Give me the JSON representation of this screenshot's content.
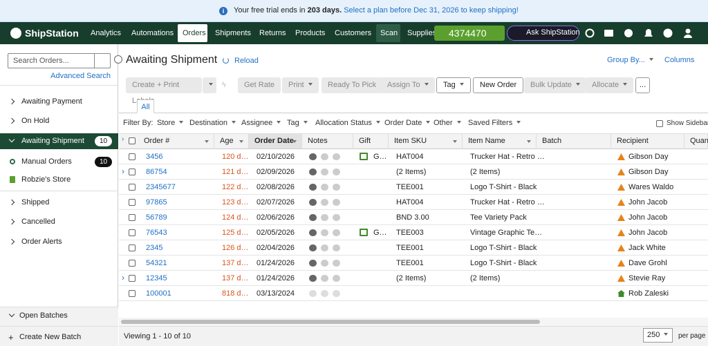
{
  "banner": {
    "text": "Your free trial ends in",
    "days": "203 days.",
    "link": "Select a plan before Dec 31, 2026 to keep shipping!"
  },
  "nav": {
    "brand": "ShipStation",
    "items": [
      "Analytics",
      "Automations",
      "Orders",
      "Shipments",
      "Returns",
      "Products",
      "Customers",
      "Scan",
      "Supplies"
    ],
    "balance": "4374470",
    "ask": "Ask ShipStation"
  },
  "sidebar": {
    "search_placeholder": "Search Orders...",
    "advanced_search": "Advanced Search",
    "items": [
      {
        "label": "Awaiting Payment"
      },
      {
        "label": "On Hold"
      },
      {
        "label": "Awaiting Shipment",
        "count": "10"
      }
    ],
    "stores": [
      {
        "label": "Manual Orders",
        "count": "10"
      },
      {
        "label": "Robzie's Store"
      }
    ],
    "more": [
      "Shipped",
      "Cancelled",
      "Order Alerts"
    ],
    "open_batches": "Open Batches",
    "create_batch": "Create New Batch"
  },
  "header": {
    "title": "Awaiting Shipment",
    "reload": "Reload",
    "group_by": "Group By...",
    "columns": "Columns"
  },
  "toolbar": [
    "Create + Print Labels",
    "Get Rate",
    "Print",
    "Ready To Pick",
    "Assign To",
    "Tag",
    "New Order",
    "Bulk Update",
    "Allocate",
    "..."
  ],
  "tab": "All",
  "filters": {
    "label": "Filter By:",
    "items": [
      "Store",
      "Destination",
      "Assignee",
      "Tag",
      "Allocation Status",
      "Order Date",
      "Other",
      "Saved Filters"
    ],
    "show_sidebar": "Show Sidebar"
  },
  "table": {
    "columns": [
      "Order #",
      "Age",
      "Order Date",
      "Notes",
      "Gift",
      "Item SKU",
      "Item Name",
      "Batch",
      "Recipient",
      "Quant"
    ],
    "rows": [
      {
        "order": "3456",
        "age": "120 d…",
        "date": "02/10/2026",
        "gift": "G…",
        "sku": "HAT004",
        "item": "Trucker Hat - Retro …",
        "recipient": "Gibson Day"
      },
      {
        "order": "86754",
        "age": "121 d…",
        "date": "02/09/2026",
        "sku": "(2 Items)",
        "item": "(2 Items)",
        "recipient": "Gibson Day"
      },
      {
        "order": "2345677",
        "age": "122 d…",
        "date": "02/08/2026",
        "sku": "TEE001",
        "item": "Logo T-Shirt - Black",
        "recipient": "Wares Waldo"
      },
      {
        "order": "97865",
        "age": "123 d…",
        "date": "02/07/2026",
        "sku": "HAT004",
        "item": "Trucker Hat - Retro …",
        "recipient": "John Jacob"
      },
      {
        "order": "56789",
        "age": "124 d…",
        "date": "02/06/2026",
        "sku": "BND 3.00",
        "item": "Tee Variety Pack",
        "recipient": "John Jacob"
      },
      {
        "order": "76543",
        "age": "125 d…",
        "date": "02/05/2026",
        "gift": "G…",
        "sku": "TEE003",
        "item": "Vintage Graphic Te…",
        "recipient": "John Jacob"
      },
      {
        "order": "2345",
        "age": "126 d…",
        "date": "02/04/2026",
        "sku": "TEE001",
        "item": "Logo T-Shirt - Black",
        "recipient": "Jack White"
      },
      {
        "order": "54321",
        "age": "137 d…",
        "date": "01/24/2026",
        "sku": "TEE001",
        "item": "Logo T-Shirt - Black",
        "recipient": "Dave Grohl"
      },
      {
        "order": "12345",
        "age": "137 d…",
        "date": "01/24/2026",
        "sku": "(2 Items)",
        "item": "(2 Items)",
        "recipient": "Stevie Ray"
      },
      {
        "order": "100001",
        "age": "818 d…",
        "date": "03/13/2024",
        "recipient": "Rob Zaleski"
      }
    ]
  },
  "footer": {
    "viewing": "Viewing 1 - 10 of 10",
    "page_size": "250",
    "per_page": "per page"
  }
}
